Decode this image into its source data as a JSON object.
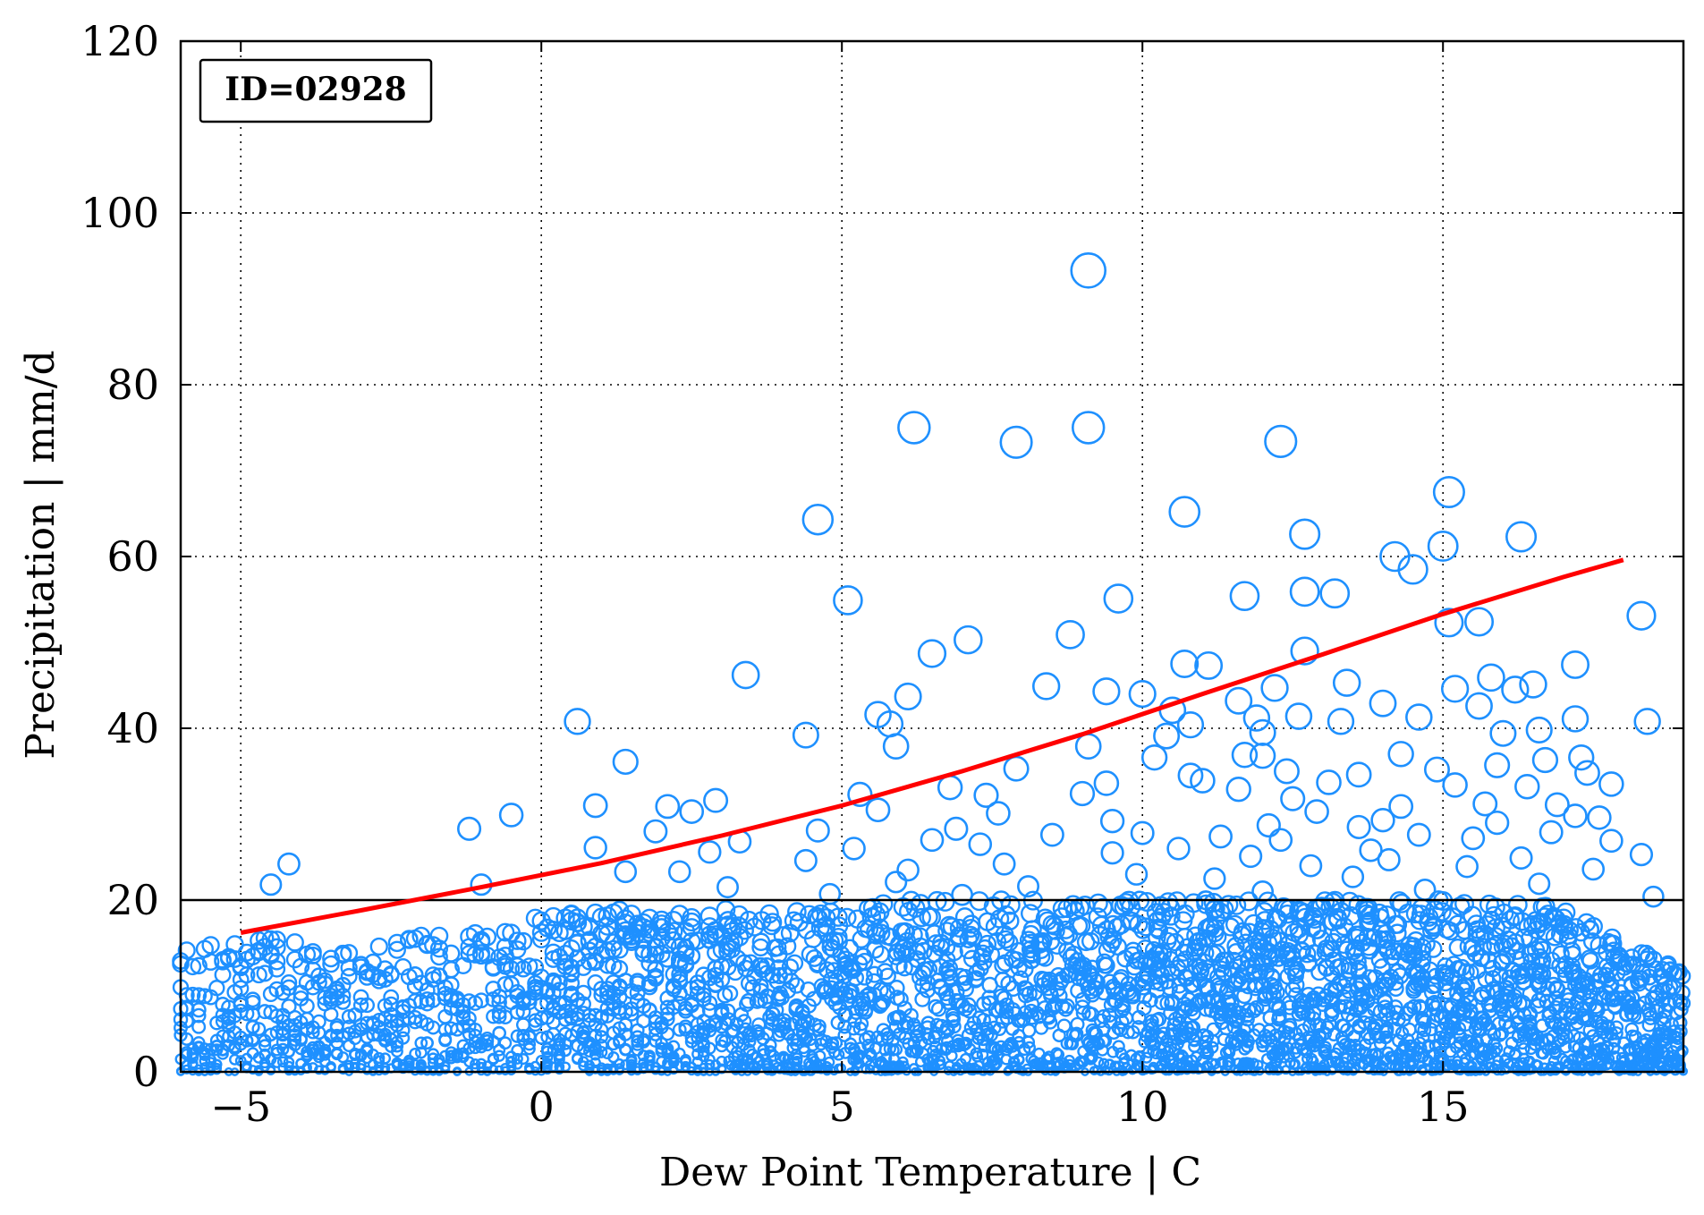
{
  "chart_data": {
    "type": "scatter",
    "annotation": "ID=02928",
    "xlabel": "Dew Point Temperature | C",
    "ylabel": "Precipitation | mm/d",
    "xlim": [
      -6,
      19
    ],
    "ylim": [
      0,
      120
    ],
    "xticks": [
      -5,
      0,
      5,
      10,
      15
    ],
    "xtick_labels": [
      "−5",
      "0",
      "5",
      "10",
      "15"
    ],
    "yticks": [
      0,
      20,
      40,
      60,
      80,
      100,
      120
    ],
    "ytick_labels": [
      "0",
      "20",
      "40",
      "60",
      "80",
      "100",
      "120"
    ],
    "grid": true,
    "colors": {
      "points": "#1e90ff",
      "fit": "#ff0000",
      "threshold": "#000000"
    },
    "threshold_line": {
      "y": 20
    },
    "fit_curve": {
      "x": [
        -5,
        -3,
        -1,
        1,
        3,
        5,
        7,
        9,
        11,
        13,
        15,
        17,
        18
      ],
      "y": [
        16.2,
        18.8,
        21.5,
        24.3,
        27.5,
        31.0,
        35.0,
        39.3,
        44.0,
        48.6,
        53.3,
        57.6,
        59.6
      ]
    },
    "outliers": [
      {
        "x": 9.1,
        "y": 93.3
      },
      {
        "x": 6.2,
        "y": 75.0
      },
      {
        "x": 9.1,
        "y": 75.0
      },
      {
        "x": 7.9,
        "y": 73.3
      },
      {
        "x": 12.3,
        "y": 73.4
      },
      {
        "x": 15.1,
        "y": 67.5
      },
      {
        "x": 10.7,
        "y": 65.2
      },
      {
        "x": 4.6,
        "y": 64.3
      },
      {
        "x": 12.7,
        "y": 62.6
      },
      {
        "x": 16.3,
        "y": 62.3
      },
      {
        "x": 15.0,
        "y": 61.2
      },
      {
        "x": 14.2,
        "y": 60.0
      },
      {
        "x": 14.5,
        "y": 58.5
      },
      {
        "x": 12.7,
        "y": 55.9
      },
      {
        "x": 13.2,
        "y": 55.7
      },
      {
        "x": 11.7,
        "y": 55.4
      },
      {
        "x": 9.6,
        "y": 55.1
      },
      {
        "x": 5.1,
        "y": 54.9
      },
      {
        "x": 18.3,
        "y": 53.1
      },
      {
        "x": 15.1,
        "y": 52.3
      },
      {
        "x": 15.6,
        "y": 52.4
      },
      {
        "x": 8.8,
        "y": 50.9
      },
      {
        "x": 7.1,
        "y": 50.3
      },
      {
        "x": 12.7,
        "y": 49.0
      },
      {
        "x": 6.5,
        "y": 48.7
      },
      {
        "x": 10.7,
        "y": 47.5
      },
      {
        "x": 11.1,
        "y": 47.3
      },
      {
        "x": 17.2,
        "y": 47.4
      },
      {
        "x": 3.4,
        "y": 46.2
      },
      {
        "x": 15.8,
        "y": 45.9
      },
      {
        "x": 13.4,
        "y": 45.3
      },
      {
        "x": 16.5,
        "y": 45.1
      },
      {
        "x": 8.4,
        "y": 44.9
      },
      {
        "x": 15.2,
        "y": 44.6
      },
      {
        "x": 16.2,
        "y": 44.5
      },
      {
        "x": 12.2,
        "y": 44.7
      },
      {
        "x": 9.4,
        "y": 44.3
      },
      {
        "x": 10.0,
        "y": 44.0
      },
      {
        "x": 6.1,
        "y": 43.7
      },
      {
        "x": 11.6,
        "y": 43.2
      },
      {
        "x": 14.0,
        "y": 42.9
      },
      {
        "x": 15.6,
        "y": 42.6
      },
      {
        "x": 10.5,
        "y": 42.1
      },
      {
        "x": 5.6,
        "y": 41.6
      },
      {
        "x": 12.6,
        "y": 41.4
      },
      {
        "x": 14.6,
        "y": 41.3
      },
      {
        "x": 11.9,
        "y": 41.2
      },
      {
        "x": 17.2,
        "y": 41.1
      },
      {
        "x": 13.3,
        "y": 40.8
      },
      {
        "x": 0.6,
        "y": 40.8
      },
      {
        "x": 18.4,
        "y": 40.8
      },
      {
        "x": 5.8,
        "y": 40.5
      },
      {
        "x": 10.8,
        "y": 40.4
      },
      {
        "x": 16.6,
        "y": 39.8
      },
      {
        "x": 12.0,
        "y": 39.5
      },
      {
        "x": 16.0,
        "y": 39.4
      },
      {
        "x": 10.4,
        "y": 39.1
      },
      {
        "x": 4.4,
        "y": 39.2
      },
      {
        "x": 5.9,
        "y": 37.9
      },
      {
        "x": 9.1,
        "y": 37.9
      },
      {
        "x": 14.3,
        "y": 37.0
      },
      {
        "x": 11.7,
        "y": 36.9
      },
      {
        "x": 12.0,
        "y": 36.8
      },
      {
        "x": 17.3,
        "y": 36.6
      },
      {
        "x": 16.7,
        "y": 36.3
      },
      {
        "x": 10.2,
        "y": 36.6
      },
      {
        "x": 1.4,
        "y": 36.1
      },
      {
        "x": 15.9,
        "y": 35.7
      },
      {
        "x": 7.9,
        "y": 35.3
      },
      {
        "x": 14.9,
        "y": 35.2
      },
      {
        "x": 12.4,
        "y": 35.0
      },
      {
        "x": 13.6,
        "y": 34.6
      },
      {
        "x": 10.8,
        "y": 34.5
      },
      {
        "x": 17.4,
        "y": 34.8
      },
      {
        "x": 11.0,
        "y": 33.9
      },
      {
        "x": 9.4,
        "y": 33.6
      },
      {
        "x": 13.1,
        "y": 33.7
      },
      {
        "x": 16.4,
        "y": 33.2
      },
      {
        "x": 15.2,
        "y": 33.4
      },
      {
        "x": 6.8,
        "y": 33.1
      },
      {
        "x": 11.6,
        "y": 32.9
      },
      {
        "x": 17.8,
        "y": 33.5
      },
      {
        "x": 5.3,
        "y": 32.3
      },
      {
        "x": 7.4,
        "y": 32.2
      },
      {
        "x": 9.0,
        "y": 32.4
      },
      {
        "x": 12.5,
        "y": 31.8
      },
      {
        "x": 2.9,
        "y": 31.6
      },
      {
        "x": 15.7,
        "y": 31.2
      },
      {
        "x": 16.9,
        "y": 31.1
      },
      {
        "x": 0.9,
        "y": 31.0
      },
      {
        "x": 14.3,
        "y": 30.9
      },
      {
        "x": 2.1,
        "y": 30.9
      },
      {
        "x": 12.9,
        "y": 30.3
      },
      {
        "x": -0.5,
        "y": 29.9
      },
      {
        "x": 5.6,
        "y": 30.5
      },
      {
        "x": 2.5,
        "y": 30.3
      },
      {
        "x": 7.6,
        "y": 30.1
      },
      {
        "x": 17.2,
        "y": 29.8
      },
      {
        "x": 17.6,
        "y": 29.6
      },
      {
        "x": 14.0,
        "y": 29.3
      },
      {
        "x": 9.5,
        "y": 29.2
      },
      {
        "x": 15.9,
        "y": 29.0
      },
      {
        "x": 12.1,
        "y": 28.7
      },
      {
        "x": 6.9,
        "y": 28.3
      },
      {
        "x": 13.6,
        "y": 28.5
      },
      {
        "x": -1.2,
        "y": 28.3
      },
      {
        "x": 4.6,
        "y": 28.1
      },
      {
        "x": 1.9,
        "y": 28.0
      },
      {
        "x": 10.0,
        "y": 27.8
      },
      {
        "x": 14.6,
        "y": 27.6
      },
      {
        "x": 16.8,
        "y": 27.9
      },
      {
        "x": 11.3,
        "y": 27.4
      },
      {
        "x": 8.5,
        "y": 27.6
      },
      {
        "x": 6.5,
        "y": 27.0
      },
      {
        "x": 3.3,
        "y": 26.8
      },
      {
        "x": 12.3,
        "y": 27.0
      },
      {
        "x": 15.5,
        "y": 27.2
      },
      {
        "x": 17.8,
        "y": 26.9
      },
      {
        "x": 7.3,
        "y": 26.5
      },
      {
        "x": 0.9,
        "y": 26.1
      },
      {
        "x": 10.6,
        "y": 26.0
      },
      {
        "x": 13.8,
        "y": 25.8
      },
      {
        "x": 18.3,
        "y": 25.3
      },
      {
        "x": 5.2,
        "y": 26.0
      },
      {
        "x": 9.5,
        "y": 25.5
      },
      {
        "x": 2.8,
        "y": 25.6
      },
      {
        "x": 16.3,
        "y": 24.9
      },
      {
        "x": 11.8,
        "y": 25.1
      },
      {
        "x": 4.4,
        "y": 24.6
      },
      {
        "x": 14.1,
        "y": 24.7
      },
      {
        "x": 7.7,
        "y": 24.2
      },
      {
        "x": -4.2,
        "y": 24.2
      },
      {
        "x": 12.8,
        "y": 24.0
      },
      {
        "x": 15.4,
        "y": 23.9
      },
      {
        "x": 1.4,
        "y": 23.3
      },
      {
        "x": 2.3,
        "y": 23.3
      },
      {
        "x": 6.1,
        "y": 23.5
      },
      {
        "x": 17.5,
        "y": 23.6
      },
      {
        "x": 9.9,
        "y": 23.0
      },
      {
        "x": 13.5,
        "y": 22.7
      },
      {
        "x": 5.9,
        "y": 22.1
      },
      {
        "x": 11.2,
        "y": 22.5
      },
      {
        "x": -1.0,
        "y": 21.8
      },
      {
        "x": -4.5,
        "y": 21.8
      },
      {
        "x": 8.1,
        "y": 21.6
      },
      {
        "x": 16.6,
        "y": 21.9
      },
      {
        "x": 3.1,
        "y": 21.5
      },
      {
        "x": 14.7,
        "y": 21.2
      },
      {
        "x": 12.0,
        "y": 21.0
      },
      {
        "x": 4.8,
        "y": 20.7
      },
      {
        "x": 18.5,
        "y": 20.4
      },
      {
        "x": 7.0,
        "y": 20.6
      }
    ],
    "dense_band": {
      "note": "thousands of smaller circles concentrated below y=20 across the x range",
      "y_max_by_x": {
        "x": [
          -6,
          -5,
          -4,
          -3,
          -2,
          -1,
          0,
          1,
          2,
          3,
          4,
          5,
          6,
          7,
          8,
          9,
          10,
          11,
          12,
          13,
          14,
          15,
          16,
          17,
          18,
          19
        ],
        "y": [
          14,
          16,
          15,
          14,
          16,
          17,
          18,
          19,
          19,
          19,
          19,
          19,
          20,
          20,
          20,
          20,
          20,
          20,
          20,
          20,
          20,
          20,
          20,
          19,
          15,
          12
        ]
      }
    }
  }
}
